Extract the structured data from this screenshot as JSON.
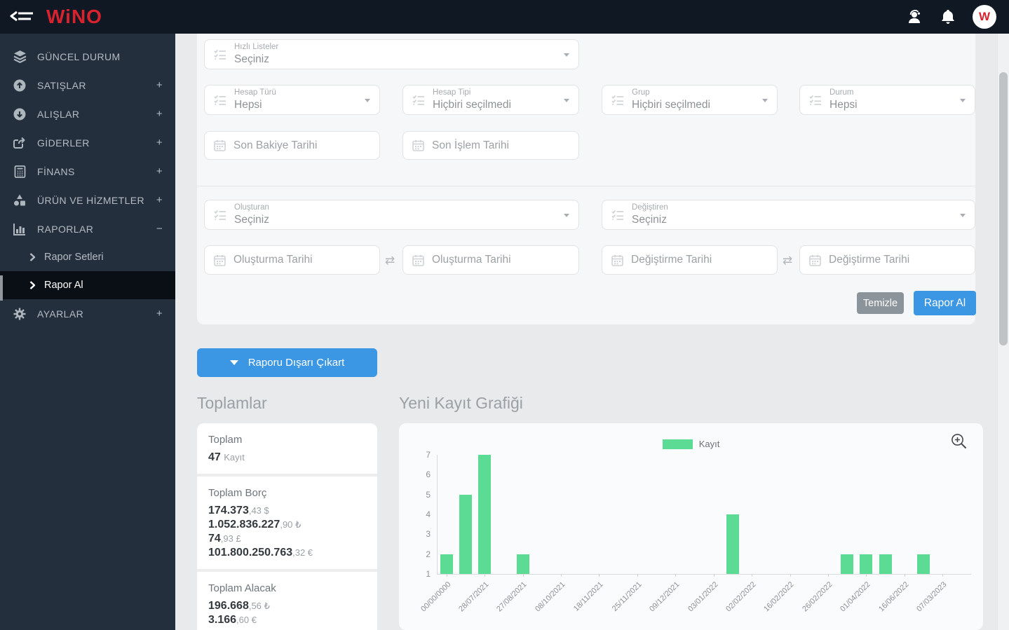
{
  "topbar": {
    "brand": "WiNO",
    "avatar_letter": "W",
    "icons": [
      "menu-collapse-icon",
      "support-agent-icon",
      "bell-icon",
      "avatar"
    ]
  },
  "sidebar": {
    "items": [
      {
        "label": "GÜNCEL DURUM",
        "icon": "layers-icon",
        "expander": ""
      },
      {
        "label": "SATIŞLAR",
        "icon": "arrow-up-circle-icon",
        "expander": "+"
      },
      {
        "label": "ALIŞLAR",
        "icon": "arrow-down-circle-icon",
        "expander": "+"
      },
      {
        "label": "GİDERLER",
        "icon": "share-icon",
        "expander": "+"
      },
      {
        "label": "FİNANS",
        "icon": "calculator-icon",
        "expander": "+"
      },
      {
        "label": "ÜRÜN VE HİZMETLER",
        "icon": "shapes-icon",
        "expander": "+"
      },
      {
        "label": "RAPORLAR",
        "icon": "bar-chart-icon",
        "expander": "−"
      },
      {
        "label": "AYARLAR",
        "icon": "gear-icon",
        "expander": "+"
      }
    ],
    "subitems": [
      {
        "label": "Rapor Setleri",
        "active": false
      },
      {
        "label": "Rapor Al",
        "active": true
      }
    ]
  },
  "filters": {
    "quick_lists": {
      "label": "Hızlı Listeler",
      "value": "Seçiniz"
    },
    "hesap_turu": {
      "label": "Hesap Türü",
      "value": "Hepsi"
    },
    "hesap_tipi": {
      "label": "Hesap Tipi",
      "value": "Hiçbiri seçilmedi"
    },
    "grup": {
      "label": "Grup",
      "value": "Hiçbiri seçilmedi"
    },
    "durum": {
      "label": "Durum",
      "value": "Hepsi"
    },
    "son_bakiye_tarihi": "Son Bakiye Tarihi",
    "son_islem_tarihi": "Son İşlem Tarihi",
    "olusturan": {
      "label": "Oluşturan",
      "value": "Seçiniz"
    },
    "degistiren": {
      "label": "Değiştiren",
      "value": "Seçiniz"
    },
    "olusturma_tarihi": "Oluşturma Tarihi",
    "degistirme_tarihi": "Değiştirme Tarihi",
    "clear_button": "Temizle",
    "submit_button": "Rapor Al"
  },
  "export_button": "Raporu Dışarı Çıkart",
  "totals": {
    "heading": "Toplamlar",
    "toplam": {
      "label": "Toplam",
      "value": "47",
      "unit": "Kayıt"
    },
    "borc": {
      "label": "Toplam Borç",
      "lines": [
        {
          "main": "174.373",
          "rest": ",43 $"
        },
        {
          "main": "1.052.836.227",
          "rest": ",90 ₺"
        },
        {
          "main": "74",
          "rest": ",93 £"
        },
        {
          "main": "101.800.250.763",
          "rest": ",32 €"
        }
      ]
    },
    "alacak": {
      "label": "Toplam Alacak",
      "lines": [
        {
          "main": "196.668",
          "rest": ",56 ₺"
        },
        {
          "main": "3.166",
          "rest": ",60 €"
        }
      ]
    }
  },
  "chart_heading": "Yeni Kayıt Grafiği",
  "chart_data": {
    "type": "bar",
    "title": "Yeni Kayıt Grafiği",
    "legend": "Kayıt",
    "legend_position": "top-center",
    "series_color": "#5cdb95",
    "ylim": [
      1,
      7
    ],
    "yticks": [
      7,
      6,
      5,
      4,
      3,
      2,
      1
    ],
    "grid": false,
    "categories": [
      "00/00/0000",
      "",
      "28/07/2021",
      "",
      "27/08/2021",
      "",
      "08/10/2021",
      "",
      "18/11/2021",
      "",
      "25/11/2021",
      "",
      "09/12/2021",
      "",
      "03/01/2022",
      "",
      "02/02/2022",
      "",
      "16/02/2022",
      "",
      "26/02/2022",
      "",
      "01/04/2022",
      "",
      "16/06/2022",
      "",
      "07/03/2023",
      ""
    ],
    "values": [
      2,
      5,
      7,
      0,
      2,
      0,
      0,
      0,
      0,
      0,
      0,
      0,
      0,
      0,
      0,
      4,
      0,
      0,
      0,
      0,
      0,
      2,
      2,
      2,
      0,
      2,
      0,
      0
    ]
  }
}
